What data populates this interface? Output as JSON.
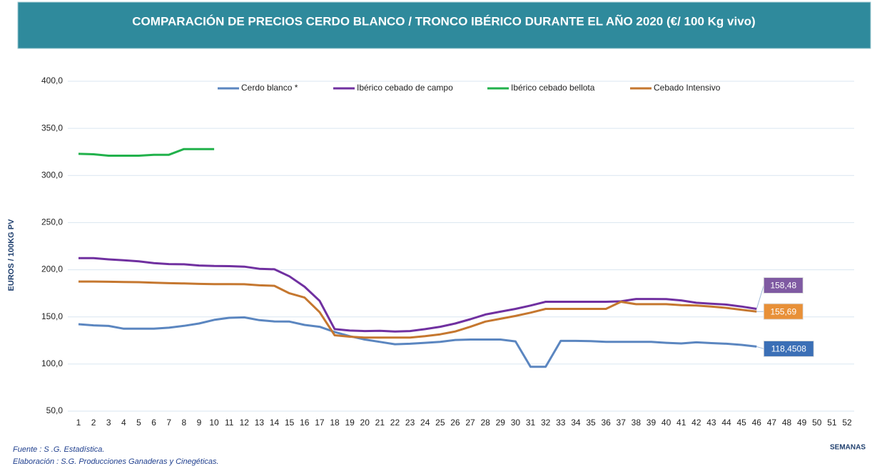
{
  "chart_data": {
    "type": "line",
    "title": "COMPARACIÓN DE PRECIOS CERDO BLANCO / TRONCO IBÉRICO DURANTE EL AÑO 2020 (€/ 100 Kg vivo)",
    "y_label": "EUROS / 100KG PV",
    "x_label": "SEMANAS",
    "source": "Fuente :  S .G. Estadística.",
    "credit": "Elaboración : S.G. Producciones Ganaderas y Cinegéticas.",
    "categories": [
      "1",
      "2",
      "3",
      "4",
      "5",
      "6",
      "7",
      "8",
      "9",
      "10",
      "11",
      "12",
      "13",
      "14",
      "15",
      "16",
      "17",
      "18",
      "19",
      "20",
      "21",
      "22",
      "23",
      "24",
      "25",
      "26",
      "27",
      "28",
      "29",
      "30",
      "31",
      "32",
      "33",
      "34",
      "35",
      "36",
      "37",
      "38",
      "39",
      "40",
      "41",
      "42",
      "43",
      "44",
      "45",
      "46",
      "47",
      "48",
      "49",
      "50",
      "51",
      "52"
    ],
    "ylim": [
      50,
      400
    ],
    "yticks": [
      {
        "value": 50,
        "label": "50,0"
      },
      {
        "value": 100,
        "label": "100,0"
      },
      {
        "value": 150,
        "label": "150,0"
      },
      {
        "value": 200,
        "label": "200,0"
      },
      {
        "value": 250,
        "label": "250,0"
      },
      {
        "value": 300,
        "label": "300,0"
      },
      {
        "value": 350,
        "label": "350,0"
      },
      {
        "value": 400,
        "label": "400,0"
      }
    ],
    "grid": true,
    "legend": "top",
    "series": [
      {
        "name": "Cerdo blanco *",
        "color": "#5b86c0",
        "values": [
          142.2,
          141,
          140.4,
          137.5,
          137.5,
          137.5,
          138.5,
          140.5,
          143,
          146.8,
          149,
          149.5,
          146.5,
          145.2,
          145,
          141.5,
          139.5,
          134,
          129.5,
          126,
          123.5,
          121,
          121.5,
          122.5,
          123.5,
          125.5,
          126,
          126,
          126,
          124,
          97,
          97,
          124.5,
          124.5,
          124.2,
          123.5,
          123.5,
          123.5,
          123.5,
          122.5,
          121.8,
          123,
          122.2,
          121.5,
          120.3,
          118.4508,
          null,
          null,
          null,
          null,
          null,
          null
        ],
        "value_labels": [
          null,
          null,
          null,
          null,
          null,
          null,
          null,
          null,
          null,
          null,
          null,
          null,
          null,
          null,
          null,
          null,
          null,
          null,
          null,
          null,
          null,
          null,
          null,
          null,
          null,
          null,
          null,
          null,
          null,
          null,
          null,
          null,
          null,
          null,
          null,
          null,
          null,
          null,
          null,
          null,
          null,
          null,
          null,
          null,
          null,
          "118,4508",
          null,
          null,
          null,
          null,
          null,
          null
        ],
        "label_color": "#3b6fb6"
      },
      {
        "name": "Ibérico cebado de campo",
        "color": "#7030a0",
        "values": [
          212.3,
          212.3,
          211,
          210,
          209,
          207,
          206,
          205.8,
          204.5,
          204,
          203.8,
          203.3,
          201,
          200.5,
          193,
          182,
          167,
          137,
          135.5,
          135,
          135.2,
          134.5,
          135,
          137,
          139.5,
          143,
          147.5,
          152.5,
          155.5,
          158.5,
          162,
          166,
          166,
          166,
          166,
          166,
          166.5,
          169,
          169,
          168.8,
          167.5,
          165,
          164,
          163,
          161,
          158.48,
          null,
          null,
          null,
          null,
          null,
          null
        ],
        "value_labels": [
          null,
          null,
          null,
          null,
          null,
          null,
          null,
          null,
          null,
          null,
          null,
          null,
          null,
          null,
          null,
          null,
          null,
          null,
          null,
          null,
          null,
          null,
          null,
          null,
          null,
          null,
          null,
          null,
          null,
          null,
          null,
          null,
          null,
          null,
          null,
          null,
          null,
          null,
          null,
          null,
          null,
          null,
          null,
          null,
          null,
          "158,48",
          null,
          null,
          null,
          null,
          null,
          null
        ],
        "label_color": "#7f5aa2"
      },
      {
        "name": "Ibérico cebado bellota",
        "color": "#21b14b",
        "values": [
          323,
          322.5,
          321,
          321,
          321,
          322,
          322,
          328,
          328,
          328,
          null,
          null,
          null,
          null,
          null,
          null,
          null,
          null,
          null,
          null,
          null,
          null,
          null,
          null,
          null,
          null,
          null,
          null,
          null,
          null,
          null,
          null,
          null,
          null,
          null,
          null,
          null,
          null,
          null,
          null,
          null,
          null,
          null,
          null,
          null,
          null,
          null,
          null,
          null,
          null,
          null,
          null
        ]
      },
      {
        "name": "Cebado Intensivo",
        "color": "#c5772f",
        "values": [
          187.5,
          187.5,
          187.3,
          187,
          186.8,
          186.3,
          185.8,
          185.5,
          185,
          184.8,
          184.8,
          184.6,
          183.5,
          183,
          175,
          170.5,
          155,
          130.5,
          129,
          128,
          128,
          128,
          128,
          129.5,
          131.5,
          134.5,
          139.5,
          145,
          148,
          151,
          154.5,
          158.5,
          158.5,
          158.5,
          158.5,
          158.5,
          166,
          163.5,
          163.5,
          163.5,
          162.5,
          162,
          161,
          159.5,
          157.5,
          155.69,
          null,
          null,
          null,
          null,
          null,
          null
        ],
        "value_labels": [
          null,
          null,
          null,
          null,
          null,
          null,
          null,
          null,
          null,
          null,
          null,
          null,
          null,
          null,
          null,
          null,
          null,
          null,
          null,
          null,
          null,
          null,
          null,
          null,
          null,
          null,
          null,
          null,
          null,
          null,
          null,
          null,
          null,
          null,
          null,
          null,
          null,
          null,
          null,
          null,
          null,
          null,
          null,
          null,
          null,
          "155,69",
          null,
          null,
          null,
          null,
          null,
          null
        ],
        "label_color": "#e89038"
      }
    ]
  }
}
